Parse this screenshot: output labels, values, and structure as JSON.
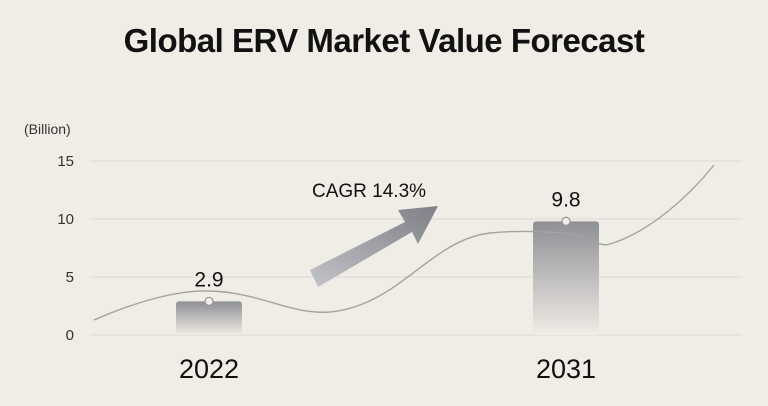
{
  "chart_data": {
    "type": "bar",
    "title": "Global ERV Market Value Forecast",
    "ylabel": "(Billion)",
    "yticks": [
      "0",
      "5",
      "10",
      "15"
    ],
    "ylim": [
      0,
      15
    ],
    "categories": [
      "2022",
      "2031"
    ],
    "values": [
      2.9,
      9.8
    ],
    "value_labels": [
      "2.9",
      "9.8"
    ],
    "annotation": "CAGR 14.3%",
    "trend_line": true,
    "grid": true,
    "colors": {
      "background": "#f0ece6",
      "bar_top": "#8f9096",
      "bar_bottom": "#f0ece6",
      "grid": "#dcd8d2",
      "trend": "#a3a3a3",
      "arrow_start": "#b6b7bd",
      "arrow_end": "#85868d"
    }
  }
}
